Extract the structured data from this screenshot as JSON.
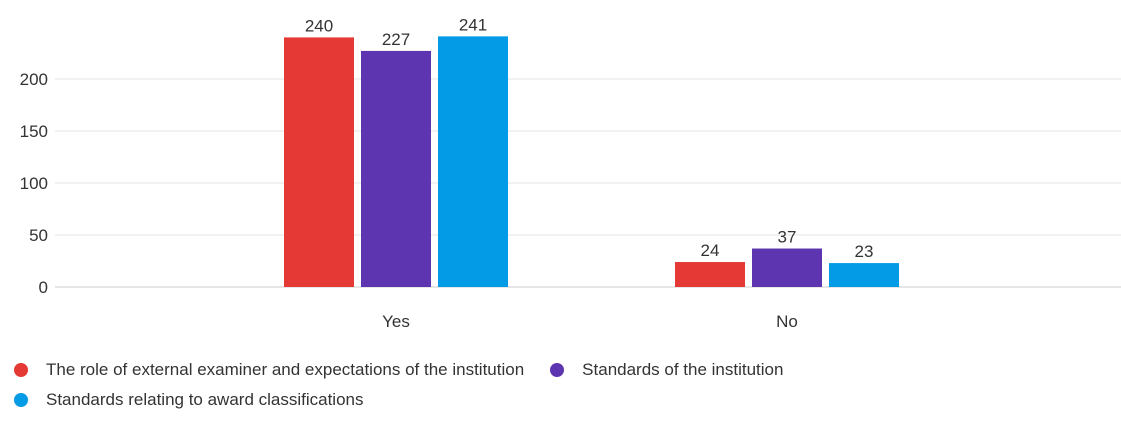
{
  "chart_data": {
    "type": "bar",
    "title": "",
    "xlabel": "",
    "ylabel": "",
    "categories": [
      "Yes",
      "No"
    ],
    "series": [
      {
        "name": "The role of external examiner and expectations of the institution",
        "values": [
          240,
          24
        ],
        "color": "#e53935"
      },
      {
        "name": "Standards of the institution",
        "values": [
          227,
          37
        ],
        "color": "#5e35b1"
      },
      {
        "name": "Standards relating to award classifications",
        "values": [
          241,
          23
        ],
        "color": "#039be5"
      }
    ],
    "ylim": [
      0,
      250
    ],
    "yticks": [
      0,
      50,
      100,
      150,
      200
    ],
    "grid": true,
    "data_labels": true,
    "legend_position": "bottom-left"
  }
}
